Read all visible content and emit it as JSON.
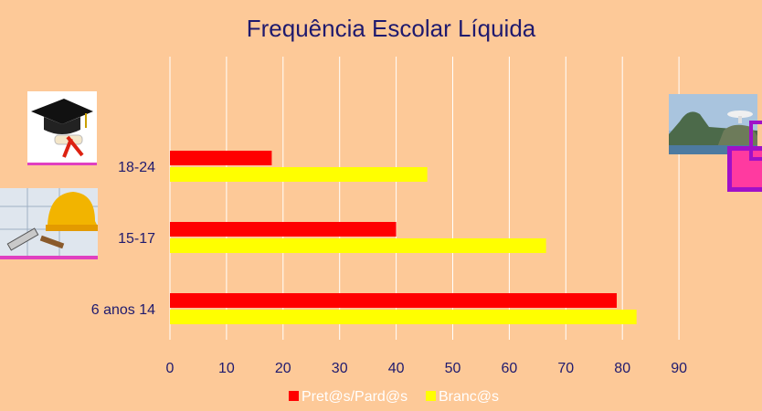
{
  "chart_data": {
    "type": "bar",
    "orientation": "horizontal",
    "title": "Frequência Escolar Líquida",
    "categories": [
      "18-24",
      "15-17",
      "6 anos 14"
    ],
    "series": [
      {
        "name": "Pret@s/Pard@s",
        "color": "#ff0000",
        "values": [
          18,
          40,
          79
        ]
      },
      {
        "name": "Branc@s",
        "color": "#ffff00",
        "values": [
          45.5,
          66.5,
          82.5
        ]
      }
    ],
    "xlim": [
      0,
      90
    ],
    "xticks": [
      "0",
      "10",
      "20",
      "30",
      "40",
      "50",
      "60",
      "70",
      "80",
      "90"
    ],
    "grid": true,
    "legend_position": "bottom"
  },
  "decorations": {
    "left_top": "graduation-cap-diploma",
    "left_mid": "hard-hat-blueprint-tools",
    "right": "coastal-landscape"
  }
}
